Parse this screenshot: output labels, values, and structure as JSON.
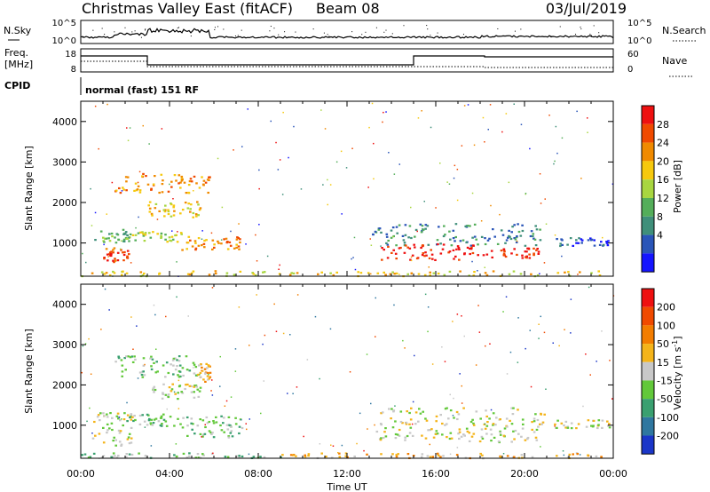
{
  "header": {
    "site": "Christmas Valley East (fitACF)",
    "beam": "Beam 08",
    "date": "03/Jul/2019"
  },
  "panels": {
    "nsky": {
      "left_label": "N.Sky",
      "left_ticks": [
        "10^5",
        "10^0"
      ],
      "right_ticks": [
        "10^5",
        "10^0"
      ],
      "right_label": "N.Search"
    },
    "freq": {
      "left_label_1": "Freq.",
      "left_label_2": "[MHz]",
      "left_ticks": [
        "18",
        "8"
      ],
      "right_ticks": [
        "60",
        "0"
      ],
      "right_label": "Nave"
    },
    "cpid": {
      "label": "CPID",
      "value": "normal (fast) 151 RF"
    }
  },
  "chart_data": [
    {
      "type": "heatmap",
      "quantity": "Power",
      "ylabel": "Slant Range [km]",
      "xlabel": "",
      "x_ticks": [
        "00:00",
        "04:00",
        "08:00",
        "12:00",
        "16:00",
        "20:00",
        "00:00"
      ],
      "x_range_hours": [
        0,
        24
      ],
      "ylim": [
        180,
        4500
      ],
      "y_ticks": [
        1000,
        2000,
        3000,
        4000
      ],
      "colorbar": {
        "label": "Power [dB]",
        "ticks": [
          "4",
          "8",
          "12",
          "16",
          "20",
          "24",
          "28"
        ],
        "colors": [
          "#1515ff",
          "#2a55b8",
          "#3f8f7a",
          "#54ae5a",
          "#a8d640",
          "#f6c90e",
          "#f08a00",
          "#f04a00",
          "#ee1010"
        ]
      },
      "regions": [
        {
          "t0": 0.6,
          "t1": 2.2,
          "r0": 1000,
          "r1": 1350,
          "level": 3
        },
        {
          "t0": 1.0,
          "t1": 2.3,
          "r0": 550,
          "r1": 900,
          "level": 7
        },
        {
          "t0": 1.5,
          "t1": 5.8,
          "r0": 2250,
          "r1": 2750,
          "level": 6
        },
        {
          "t0": 3.0,
          "t1": 5.4,
          "r0": 1650,
          "r1": 2050,
          "level": 5
        },
        {
          "t0": 2.0,
          "t1": 4.5,
          "r0": 1050,
          "r1": 1300,
          "level": 4
        },
        {
          "t0": 4.5,
          "t1": 7.3,
          "r0": 850,
          "r1": 1200,
          "level": 6
        },
        {
          "t0": 0.0,
          "t1": 24.0,
          "r0": 200,
          "r1": 330,
          "level": 5
        },
        {
          "t0": 13.1,
          "t1": 20.9,
          "r0": 950,
          "r1": 1500,
          "level": 2
        },
        {
          "t0": 13.5,
          "t1": 18.5,
          "r0": 600,
          "r1": 1000,
          "level": 8
        },
        {
          "t0": 18.8,
          "t1": 20.6,
          "r0": 650,
          "r1": 900,
          "level": 8
        },
        {
          "t0": 21.3,
          "t1": 23.8,
          "r0": 950,
          "r1": 1150,
          "level": 1
        }
      ]
    },
    {
      "type": "heatmap",
      "quantity": "Velocity",
      "ylabel": "Slant Range [km]",
      "xlabel": "Time UT",
      "x_ticks": [
        "00:00",
        "04:00",
        "08:00",
        "12:00",
        "16:00",
        "20:00",
        "00:00"
      ],
      "x_range_hours": [
        0,
        24
      ],
      "ylim": [
        180,
        4500
      ],
      "y_ticks": [
        1000,
        2000,
        3000,
        4000
      ],
      "colorbar": {
        "label": "Velocity [m s^-1]",
        "ticks": [
          "200",
          "100",
          "50",
          "15",
          "-15",
          "-50",
          "-100",
          "-200"
        ],
        "colors": [
          "#1b36c8",
          "#2f77a0",
          "#3aa070",
          "#62c83a",
          "#c8c8c8",
          "#f4b41a",
          "#f37d00",
          "#f04a00",
          "#ee1010"
        ]
      },
      "regions": [
        {
          "t0": 1.5,
          "t1": 5.2,
          "r0": 2200,
          "r1": 2750,
          "level": 3
        },
        {
          "t0": 5.2,
          "t1": 5.8,
          "r0": 2100,
          "r1": 2550,
          "level": 5
        },
        {
          "t0": 3.0,
          "t1": 5.4,
          "r0": 1650,
          "r1": 2050,
          "level": 4
        },
        {
          "t0": 0.5,
          "t1": 2.3,
          "r0": 500,
          "r1": 1350,
          "level": 4
        },
        {
          "t0": 2.0,
          "t1": 4.5,
          "r0": 1000,
          "r1": 1300,
          "level": 3
        },
        {
          "t0": 4.5,
          "t1": 7.3,
          "r0": 700,
          "r1": 1250,
          "level": 3
        },
        {
          "t0": 0.0,
          "t1": 9.0,
          "r0": 200,
          "r1": 330,
          "level": 3
        },
        {
          "t0": 9.0,
          "t1": 24.0,
          "r0": 200,
          "r1": 330,
          "level": 5
        },
        {
          "t0": 13.1,
          "t1": 20.9,
          "r0": 600,
          "r1": 1450,
          "level": 4
        },
        {
          "t0": 21.3,
          "t1": 23.8,
          "r0": 950,
          "r1": 1150,
          "level": 4
        }
      ]
    }
  ]
}
